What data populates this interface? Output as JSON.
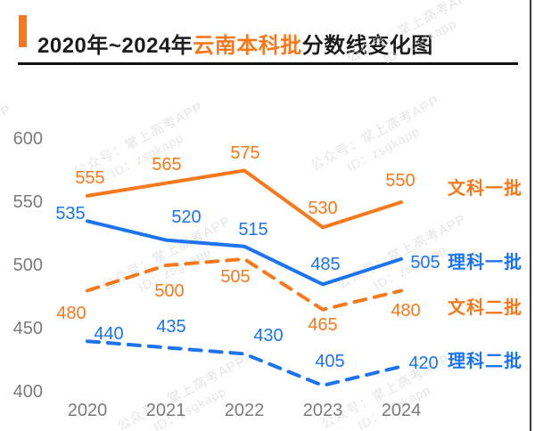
{
  "title": {
    "prefix": "2020年~2024年",
    "highlight": "云南本科批",
    "suffix": "分数线变化图"
  },
  "watermark": {
    "line1": "公众号：掌上高考APP",
    "line2": "ID：zsgkapp"
  },
  "colors": {
    "accent_orange": "#F8781C",
    "accent_blue": "#1C74F1",
    "axis_gray": "#7B7B7B"
  },
  "chart_data": {
    "type": "line",
    "title": "2020年~2024年云南本科批分数线变化图",
    "xlabel": "",
    "ylabel": "",
    "x": [
      "2020",
      "2021",
      "2022",
      "2023",
      "2024"
    ],
    "y_ticks": [
      "600",
      "550",
      "500",
      "450",
      "400"
    ],
    "ylim": [
      390,
      615
    ],
    "grid": false,
    "legend_position": "right",
    "series": [
      {
        "name": "文科一批",
        "color": "#F8781C",
        "line_style": "solid",
        "values": [
          555,
          565,
          575,
          530,
          550
        ]
      },
      {
        "name": "理科一批",
        "color": "#1C74F1",
        "line_style": "solid",
        "values": [
          535,
          520,
          515,
          485,
          505
        ]
      },
      {
        "name": "文科二批",
        "color": "#F8781C",
        "line_style": "dashed",
        "values": [
          480,
          500,
          505,
          465,
          480
        ]
      },
      {
        "name": "理科二批",
        "color": "#1C74F1",
        "line_style": "dashed",
        "values": [
          440,
          435,
          430,
          405,
          420
        ]
      }
    ]
  }
}
